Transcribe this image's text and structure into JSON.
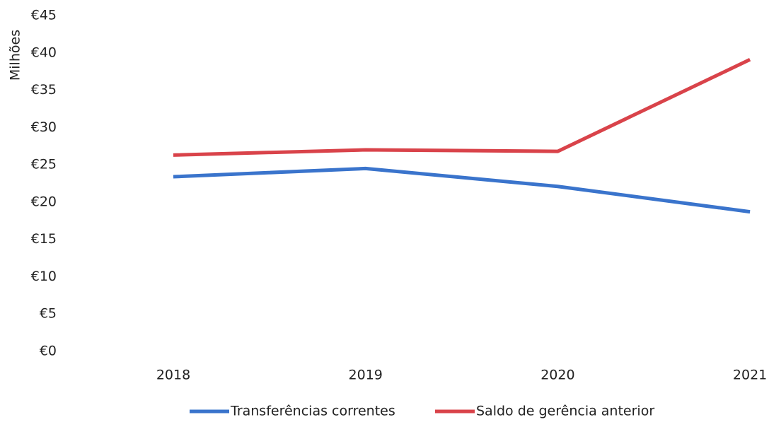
{
  "chart_data": {
    "type": "line",
    "y_label": "Milhões",
    "categories": [
      "2018",
      "2019",
      "2020",
      "2021"
    ],
    "series": [
      {
        "name": "Transferências correntes",
        "color": "#3a74cc",
        "values": [
          23.4,
          24.5,
          22.1,
          18.7
        ]
      },
      {
        "name": "Saldo de gerência anterior",
        "color": "#d9434a",
        "values": [
          26.3,
          27.0,
          26.8,
          39.1
        ]
      }
    ],
    "ylim": [
      0,
      45
    ],
    "yticks": [
      {
        "value": 0,
        "label": "€0"
      },
      {
        "value": 5,
        "label": "€5"
      },
      {
        "value": 10,
        "label": "€10"
      },
      {
        "value": 15,
        "label": "€15"
      },
      {
        "value": 20,
        "label": "€20"
      },
      {
        "value": 25,
        "label": "€25"
      },
      {
        "value": 30,
        "label": "€30"
      },
      {
        "value": 35,
        "label": "€35"
      },
      {
        "value": 40,
        "label": "€40"
      },
      {
        "value": 45,
        "label": "€45"
      }
    ],
    "legend": "bottom",
    "grid": false
  }
}
